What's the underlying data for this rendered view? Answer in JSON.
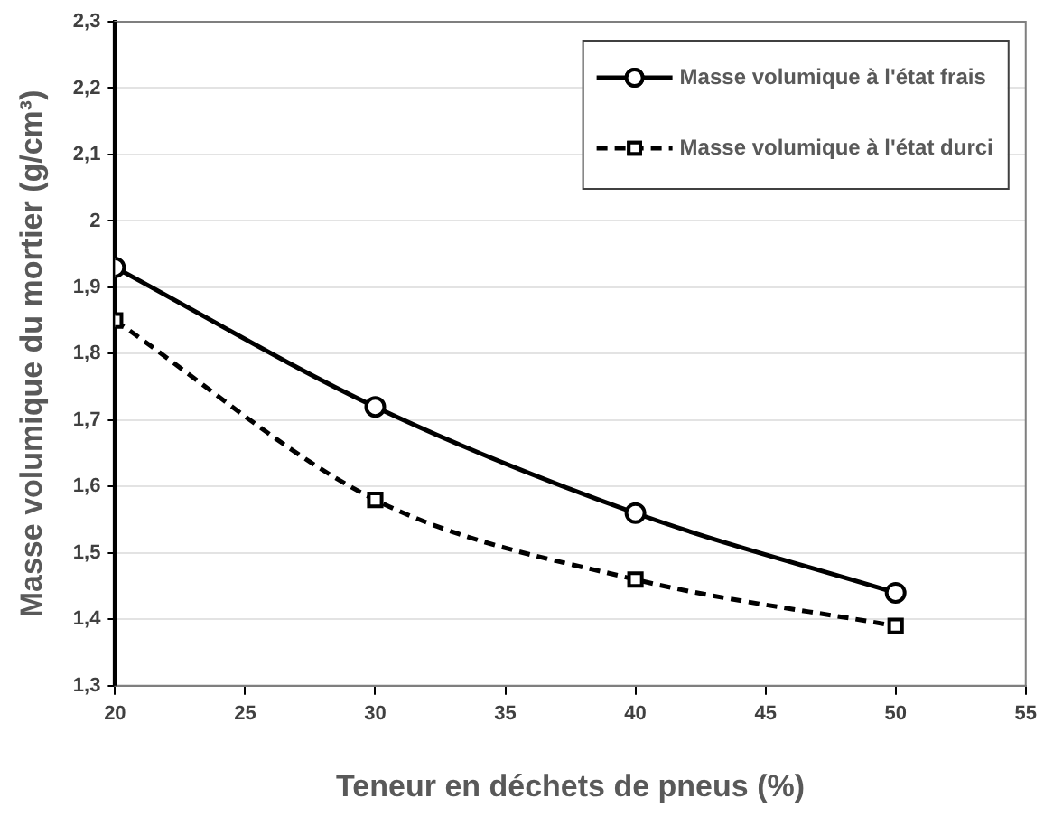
{
  "chart_data": {
    "type": "line",
    "xlabel": "Teneur en déchets de pneus (%)",
    "ylabel": "Masse volumique du mortier (g/cm³)",
    "x": [
      20,
      30,
      40,
      50
    ],
    "series": [
      {
        "name": "Masse volumique à l'état frais",
        "color": "#000000",
        "values": [
          1.93,
          1.72,
          1.56,
          1.44
        ],
        "marker": "circle",
        "line_style": "solid"
      },
      {
        "name": "Masse volumique à l'état durci",
        "color": "#000000",
        "values": [
          1.85,
          1.58,
          1.46,
          1.39
        ],
        "marker": "square",
        "line_style": "dashed"
      }
    ],
    "xlim": [
      20,
      55
    ],
    "xticks": [
      20,
      25,
      30,
      35,
      40,
      45,
      50,
      55
    ],
    "ylim": [
      1.3,
      2.3
    ],
    "yticks": [
      {
        "value": 1.3,
        "label": "1,3"
      },
      {
        "value": 1.4,
        "label": "1,4"
      },
      {
        "value": 1.5,
        "label": "1,5"
      },
      {
        "value": 1.6,
        "label": "1,6"
      },
      {
        "value": 1.7,
        "label": "1,7"
      },
      {
        "value": 1.8,
        "label": "1,8"
      },
      {
        "value": 1.9,
        "label": "1,9"
      },
      2,
      {
        "value": 2.1,
        "label": "2,1"
      },
      {
        "value": 2.2,
        "label": "2,2"
      },
      {
        "value": 2.3,
        "label": "2,3"
      }
    ],
    "grid": "y",
    "legend": "top right"
  }
}
